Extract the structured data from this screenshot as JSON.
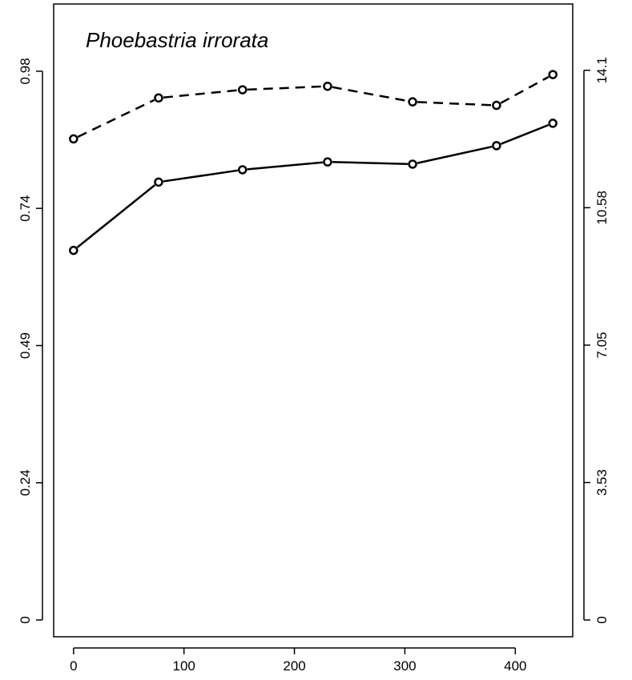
{
  "chart_data": {
    "type": "line",
    "title": "Phoebastria irrorata",
    "xlabel": "",
    "ylabel": "",
    "y2label": "",
    "xlim": [
      -18,
      452
    ],
    "ylim": [
      -0.03,
      1.1
    ],
    "y2lim": [
      -0.43,
      15.8
    ],
    "x_ticks": [
      0,
      100,
      200,
      300,
      400
    ],
    "x_tick_labels": [
      "0",
      "100",
      "200",
      "300",
      "400"
    ],
    "y_ticks": [
      0,
      0.245,
      0.49,
      0.735,
      0.98
    ],
    "y_tick_labels": [
      "0",
      "0.24",
      "0.49",
      "0.74",
      "0.98"
    ],
    "y2_ticks": [
      0,
      3.525,
      7.05,
      10.575,
      14.1
    ],
    "y2_tick_labels": [
      "0",
      "3.53",
      "7.05",
      "10.58",
      "14.1"
    ],
    "grid": false,
    "legend": "none",
    "series": [
      {
        "axis": "left",
        "line_style": "solid",
        "x": [
          0,
          77,
          153,
          230,
          307,
          383,
          434
        ],
        "values": [
          0.66,
          0.782,
          0.804,
          0.818,
          0.814,
          0.847,
          0.887
        ]
      },
      {
        "axis": "right",
        "line_style": "dashed",
        "x": [
          0,
          77,
          153,
          230,
          307,
          383,
          434
        ],
        "values": [
          12.34,
          13.39,
          13.6,
          13.69,
          13.29,
          13.2,
          13.99
        ]
      }
    ],
    "colors": {
      "line": "#000000",
      "marker_fill": "#ffffff",
      "axis": "#000000"
    }
  }
}
